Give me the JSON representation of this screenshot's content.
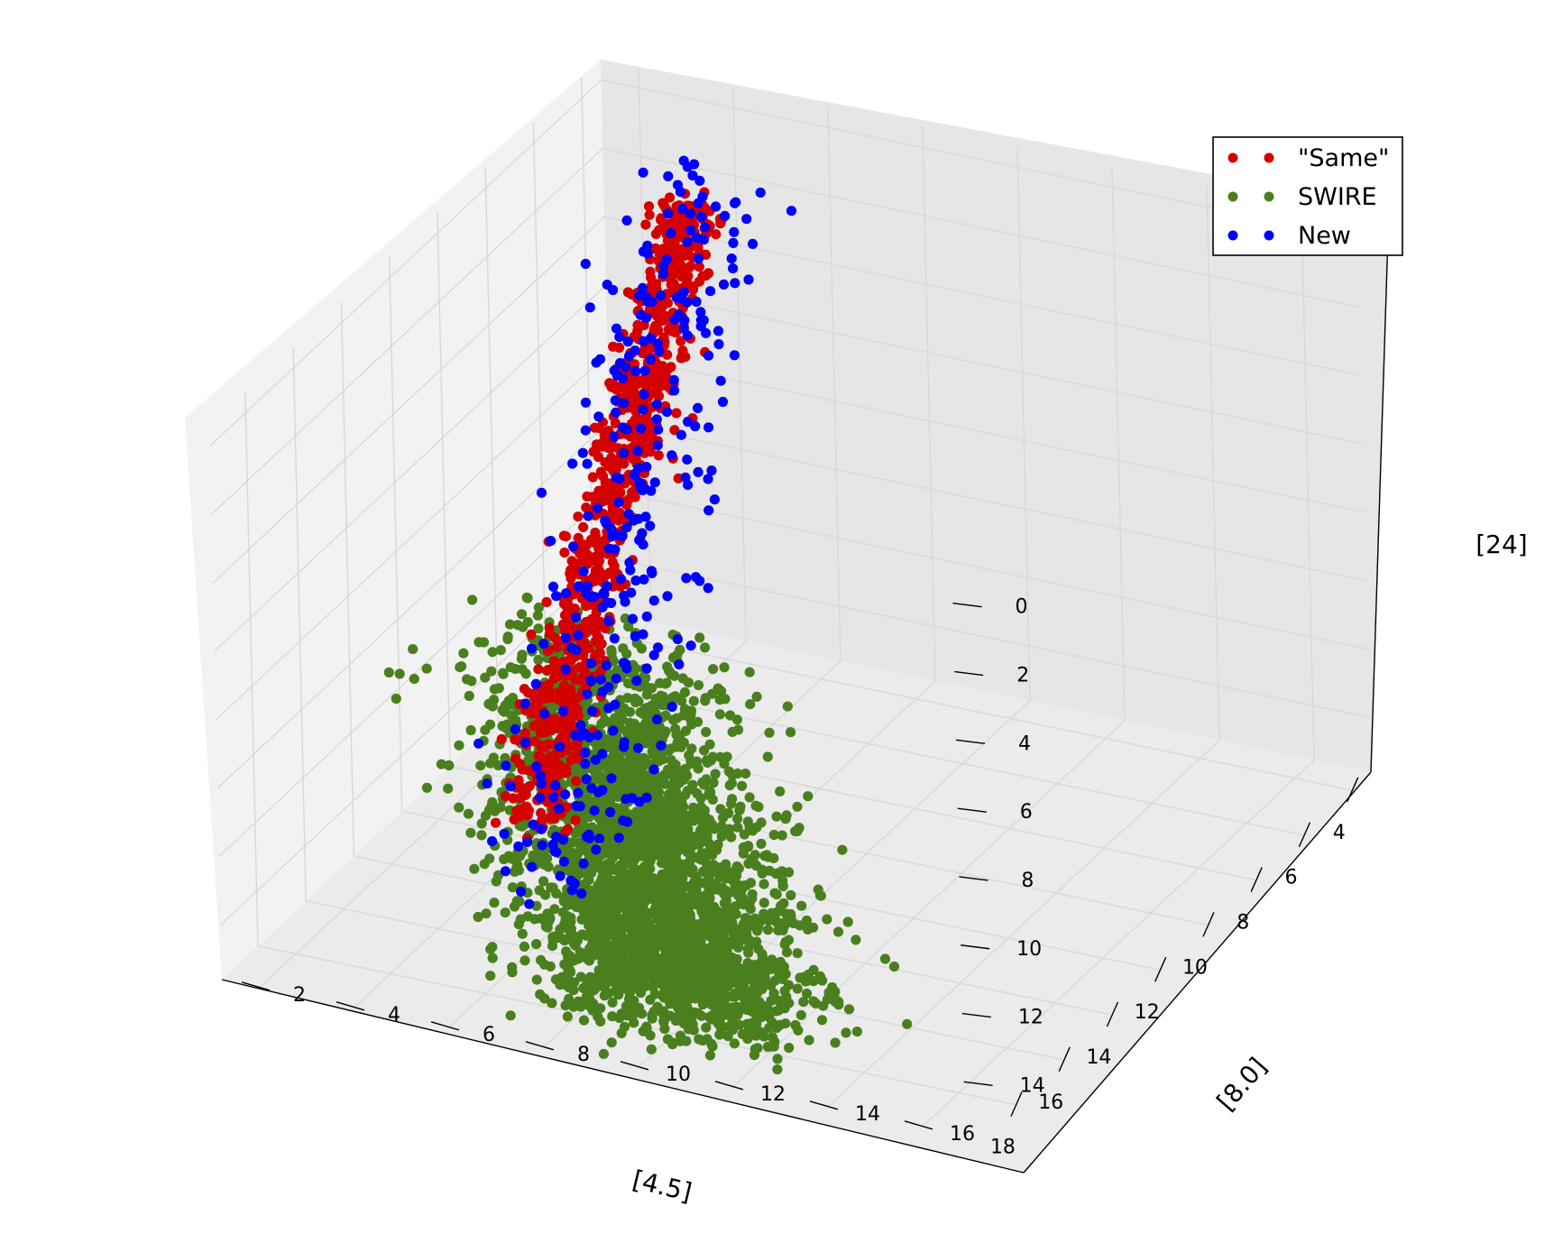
{
  "chart_data": {
    "type": "scatter",
    "projection": "3d",
    "xlabel": "[4.5]",
    "ylabel": "[8.0]",
    "zlabel": "[24]",
    "x_ticks": [
      4,
      6,
      8,
      10,
      12,
      14,
      16,
      18
    ],
    "y_ticks": [
      2,
      4,
      6,
      8,
      10,
      12,
      14,
      16
    ],
    "z_ticks": [
      0,
      2,
      4,
      6,
      8,
      10,
      12,
      14
    ],
    "xlim": [
      3.2,
      19.5
    ],
    "ylim": [
      1.2,
      17.2
    ],
    "zlim": [
      -0.6,
      15.6
    ],
    "z_inverted": true,
    "grid": true,
    "legend": "top-right",
    "colors": {
      "Same": "#d40000",
      "SWIRE": "#4a7f1e",
      "New": "#0000ff",
      "pane_back": "#e6e6e6",
      "pane_left": "#f2f2f2",
      "pane_floor": "#ebebeb"
    },
    "series": [
      {
        "name": "\"Same\"",
        "color": "#d40000",
        "n_points": 900,
        "trend": {
          "x": [
            5.0,
            16.0
          ],
          "y": [
            4.0,
            6.0
          ],
          "z": [
            1.5,
            12.0
          ]
        },
        "spread": 0.045,
        "sample_points": [
          [
            5.0,
            4.0,
            1.5
          ],
          [
            7.5,
            4.4,
            3.6
          ],
          [
            10.0,
            4.9,
            6.0
          ],
          [
            12.5,
            5.4,
            8.5
          ],
          [
            15.0,
            5.8,
            11.0
          ]
        ]
      },
      {
        "name": "SWIRE",
        "color": "#4a7f1e",
        "n_points": 3000,
        "trend": {
          "x": [
            13.0,
            18.5
          ],
          "y": [
            5.5,
            10.5
          ],
          "z": [
            8.0,
            14.5
          ]
        },
        "spread": 0.06,
        "sample_points": [
          [
            13.0,
            5.5,
            8.0
          ],
          [
            15.0,
            7.0,
            10.5
          ],
          [
            16.5,
            8.5,
            12.5
          ],
          [
            18.0,
            10.0,
            14.0
          ]
        ]
      },
      {
        "name": "New",
        "color": "#0000ff",
        "n_points": 320,
        "trend": {
          "x": [
            5.0,
            17.0
          ],
          "y": [
            4.0,
            7.0
          ],
          "z": [
            1.0,
            13.0
          ]
        },
        "spread": 0.08,
        "sample_points": [
          [
            5.0,
            4.0,
            1.0
          ],
          [
            9.0,
            4.6,
            5.0
          ],
          [
            13.0,
            5.5,
            9.0
          ],
          [
            16.0,
            6.5,
            12.0
          ]
        ]
      }
    ]
  }
}
